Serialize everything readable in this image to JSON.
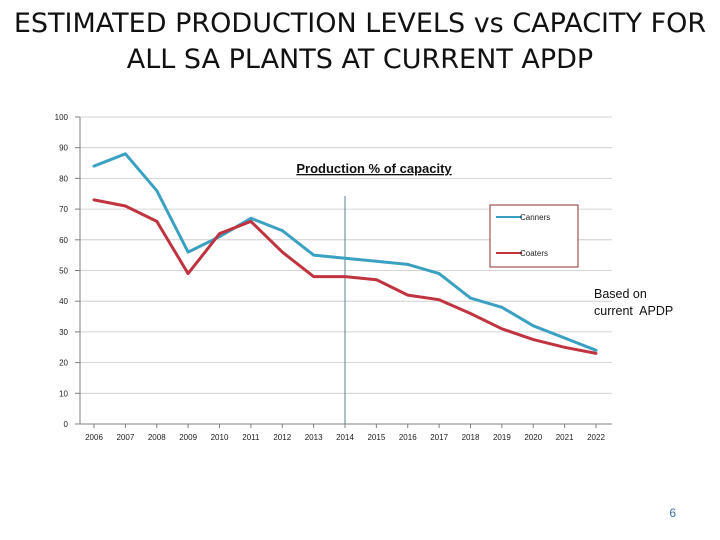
{
  "slide": {
    "title_line1": "ESTIMATED PRODUCTION LEVELS vs CAPACITY FOR",
    "title_line2": "ALL SA PLANTS AT CURRENT APDP",
    "page_number": "6"
  },
  "chart_data": {
    "type": "line",
    "title": "Production % of capacity",
    "ylim": [
      0,
      100
    ],
    "yticks": [
      0,
      10,
      20,
      30,
      40,
      50,
      60,
      70,
      80,
      90,
      100
    ],
    "categories": [
      "2006",
      "2007",
      "2008",
      "2009",
      "2010",
      "2011",
      "2012",
      "2013",
      "2014",
      "2015",
      "2016",
      "2017",
      "2018",
      "2019",
      "2020",
      "2021",
      "2022"
    ],
    "series": [
      {
        "name": "Canners",
        "color": "#3ba1c3",
        "values": [
          84,
          88,
          76,
          56,
          61,
          67,
          63,
          55,
          54,
          53,
          52,
          49,
          41,
          38,
          32,
          28,
          24
        ]
      },
      {
        "name": "Coaters",
        "color": "#c0333f",
        "values": [
          73,
          71,
          66,
          49,
          62,
          66,
          56,
          48,
          48,
          47,
          42,
          40.5,
          36,
          31,
          27.5,
          25,
          23
        ]
      }
    ],
    "legend_position": "right",
    "annotation": {
      "line1": "Based on",
      "line2": "current  APDP",
      "marker_category": "2014"
    }
  }
}
